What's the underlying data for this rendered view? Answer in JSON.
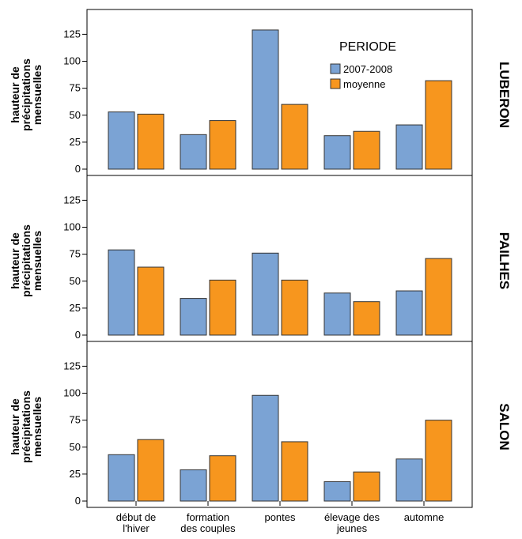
{
  "chart_data": [
    {
      "type": "bar",
      "panel_label": "LUBERON",
      "ylabel": [
        "hauteur de",
        "précipitations",
        "mensuelles"
      ],
      "ylim": [
        0,
        148
      ],
      "yticks": [
        0,
        25,
        50,
        75,
        100,
        125
      ],
      "legend_title": "PERIODE",
      "legend": "upper right",
      "series": [
        {
          "name": "2007-2008",
          "color": "#7ba3d4",
          "values": [
            53,
            32,
            129,
            31,
            41
          ]
        },
        {
          "name": "moyenne",
          "color": "#f7961e",
          "values": [
            51,
            45,
            60,
            35,
            82
          ]
        }
      ]
    },
    {
      "type": "bar",
      "panel_label": "PAILHES",
      "ylabel": [
        "hauteur de",
        "précipitations",
        "mensuelles"
      ],
      "ylim": [
        0,
        148
      ],
      "yticks": [
        0,
        25,
        50,
        75,
        100,
        125
      ],
      "series": [
        {
          "color": "#7ba3d4",
          "values": [
            79,
            34,
            76,
            39,
            41
          ]
        },
        {
          "color": "#f7961e",
          "values": [
            63,
            51,
            51,
            31,
            71
          ]
        }
      ]
    },
    {
      "type": "bar",
      "panel_label": "SALON",
      "ylabel": [
        "hauteur de",
        "précipitations",
        "mensuelles"
      ],
      "ylim": [
        0,
        148
      ],
      "yticks": [
        0,
        25,
        50,
        75,
        100,
        125
      ],
      "categories": [
        [
          "début de",
          "l'hiver"
        ],
        [
          "formation",
          "des couples"
        ],
        [
          "pontes"
        ],
        [
          "élevage des",
          "jeunes"
        ],
        [
          "automne"
        ]
      ],
      "series": [
        {
          "color": "#7ba3d4",
          "values": [
            43,
            29,
            98,
            18,
            39
          ]
        },
        {
          "color": "#f7961e",
          "values": [
            57,
            42,
            55,
            27,
            75
          ]
        }
      ]
    }
  ]
}
